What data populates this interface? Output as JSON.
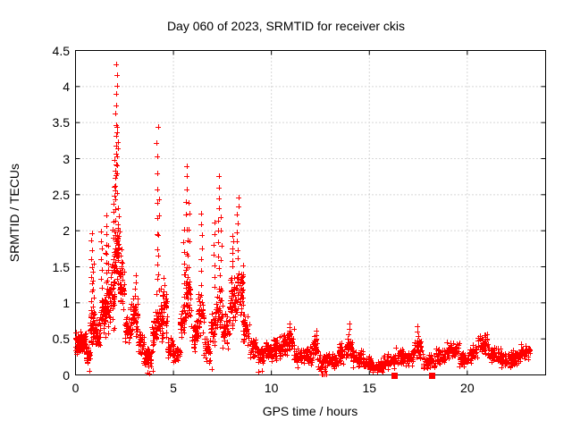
{
  "chart_data": {
    "type": "scatter",
    "title": "Day 060 of 2023, SRMTID for receiver ckis",
    "xlabel": "GPS time / hours",
    "ylabel": "SRMTID / TECUs",
    "xlim": [
      0,
      24
    ],
    "ylim": [
      0,
      4.5
    ],
    "xticks": [
      0,
      5,
      10,
      15,
      20
    ],
    "xtick_labels": [
      "0",
      "5",
      "10",
      "15",
      "20"
    ],
    "yticks": [
      0,
      0.5,
      1,
      1.5,
      2,
      2.5,
      3,
      3.5,
      4,
      4.5
    ],
    "ytick_labels": [
      "0",
      "0.5",
      "1",
      "1.5",
      "2",
      "2.5",
      "3",
      "3.5",
      "4",
      "4.5"
    ],
    "grid": true,
    "legend": "none",
    "axis_color": "#000000",
    "grid_color": "#b0b0b0",
    "marker_color": "#ff0000",
    "marker_size": 7,
    "seed": 60,
    "series": [
      {
        "name": "srmtid-plus-markers",
        "marker": "plus",
        "color": "#ff0000",
        "bands": [
          [
            0.0,
            0.3,
            0.25,
            0.65,
            45
          ],
          [
            0.3,
            0.55,
            0.28,
            0.6,
            35
          ],
          [
            0.55,
            0.75,
            0.12,
            0.45,
            28
          ],
          [
            0.75,
            1.0,
            0.3,
            0.95,
            42
          ],
          [
            1.0,
            1.25,
            0.35,
            0.8,
            32
          ],
          [
            1.25,
            1.55,
            0.45,
            1.25,
            40
          ],
          [
            1.55,
            1.8,
            0.5,
            1.4,
            35
          ],
          [
            1.8,
            2.0,
            0.6,
            1.6,
            30
          ],
          [
            1.95,
            2.25,
            1.2,
            2.1,
            45
          ],
          [
            2.25,
            2.5,
            0.8,
            1.6,
            35
          ],
          [
            2.5,
            2.8,
            0.4,
            0.9,
            32
          ],
          [
            2.8,
            3.2,
            0.45,
            1.15,
            42
          ],
          [
            3.2,
            3.5,
            0.25,
            0.6,
            30
          ],
          [
            3.5,
            3.9,
            0.05,
            0.4,
            40
          ],
          [
            3.9,
            4.15,
            0.3,
            0.9,
            26
          ],
          [
            4.1,
            4.35,
            0.4,
            1.05,
            24
          ],
          [
            4.35,
            4.7,
            0.4,
            1.3,
            40
          ],
          [
            4.7,
            5.0,
            0.2,
            0.55,
            28
          ],
          [
            5.0,
            5.35,
            0.13,
            0.4,
            30
          ],
          [
            5.35,
            5.6,
            0.45,
            1.05,
            30
          ],
          [
            5.6,
            5.9,
            0.6,
            1.55,
            40
          ],
          [
            5.9,
            6.25,
            0.28,
            0.8,
            34
          ],
          [
            6.25,
            6.55,
            0.5,
            1.15,
            35
          ],
          [
            6.55,
            6.9,
            0.15,
            0.55,
            30
          ],
          [
            6.9,
            7.2,
            0.35,
            1.0,
            32
          ],
          [
            7.2,
            7.5,
            0.45,
            1.2,
            35
          ],
          [
            7.5,
            7.85,
            0.3,
            0.9,
            34
          ],
          [
            7.85,
            8.2,
            0.55,
            1.45,
            46
          ],
          [
            8.2,
            8.55,
            0.75,
            1.55,
            40
          ],
          [
            8.55,
            8.9,
            0.35,
            0.95,
            32
          ],
          [
            8.9,
            9.3,
            0.2,
            0.55,
            34
          ],
          [
            9.3,
            9.7,
            0.1,
            0.45,
            32
          ],
          [
            9.7,
            10.1,
            0.15,
            0.5,
            36
          ],
          [
            10.1,
            10.45,
            0.2,
            0.55,
            34
          ],
          [
            10.45,
            10.8,
            0.2,
            0.6,
            34
          ],
          [
            10.8,
            11.15,
            0.25,
            0.68,
            32
          ],
          [
            11.15,
            11.6,
            0.1,
            0.4,
            38
          ],
          [
            11.6,
            12.1,
            0.12,
            0.42,
            42
          ],
          [
            12.1,
            12.4,
            0.18,
            0.6,
            28
          ],
          [
            12.4,
            12.85,
            0.04,
            0.3,
            38
          ],
          [
            12.85,
            13.4,
            0.08,
            0.32,
            44
          ],
          [
            13.4,
            13.8,
            0.12,
            0.45,
            34
          ],
          [
            13.8,
            14.15,
            0.18,
            0.55,
            30
          ],
          [
            14.15,
            14.7,
            0.1,
            0.35,
            44
          ],
          [
            14.7,
            15.1,
            0.06,
            0.28,
            34
          ],
          [
            15.1,
            15.7,
            0.03,
            0.22,
            46
          ],
          [
            15.7,
            16.3,
            0.08,
            0.3,
            46
          ],
          [
            16.3,
            16.8,
            0.12,
            0.38,
            38
          ],
          [
            16.8,
            17.25,
            0.1,
            0.33,
            34
          ],
          [
            17.25,
            17.7,
            0.18,
            0.5,
            34
          ],
          [
            17.7,
            18.4,
            0.07,
            0.3,
            52
          ],
          [
            18.4,
            18.9,
            0.12,
            0.38,
            38
          ],
          [
            18.9,
            19.6,
            0.22,
            0.5,
            52
          ],
          [
            19.6,
            20.1,
            0.08,
            0.32,
            38
          ],
          [
            20.1,
            20.55,
            0.15,
            0.45,
            34
          ],
          [
            20.55,
            21.1,
            0.25,
            0.58,
            42
          ],
          [
            21.1,
            21.7,
            0.15,
            0.4,
            44
          ],
          [
            21.7,
            22.3,
            0.1,
            0.32,
            44
          ],
          [
            22.3,
            22.7,
            0.12,
            0.35,
            30
          ],
          [
            22.7,
            23.2,
            0.18,
            0.45,
            38
          ]
        ],
        "columns": [
          [
            0.82,
            0.9,
            1.97,
            10
          ],
          [
            0.9,
            0.7,
            1.55,
            8
          ],
          [
            1.32,
            1.2,
            2.0,
            7
          ],
          [
            1.55,
            1.3,
            2.2,
            8
          ],
          [
            1.63,
            1.2,
            1.8,
            6
          ],
          [
            1.95,
            1.9,
            2.6,
            7
          ],
          [
            2.02,
            2.0,
            3.0,
            8
          ],
          [
            2.07,
            2.5,
            4.3,
            14
          ],
          [
            2.12,
            2.8,
            3.45,
            7
          ],
          [
            2.18,
            1.9,
            2.3,
            5
          ],
          [
            2.35,
            1.4,
            1.75,
            5
          ],
          [
            3.05,
            1.1,
            1.38,
            4
          ],
          [
            4.18,
            1.1,
            3.45,
            12
          ],
          [
            4.25,
            0.9,
            2.45,
            7
          ],
          [
            4.5,
            1.0,
            1.35,
            5
          ],
          [
            5.55,
            1.1,
            2.0,
            7
          ],
          [
            5.68,
            1.5,
            2.92,
            9
          ],
          [
            5.78,
            1.3,
            2.4,
            7
          ],
          [
            6.42,
            1.1,
            2.25,
            8
          ],
          [
            7.08,
            1.2,
            2.1,
            7
          ],
          [
            7.3,
            1.5,
            2.78,
            9
          ],
          [
            7.42,
            1.2,
            2.2,
            6
          ],
          [
            8.02,
            1.5,
            1.95,
            6
          ],
          [
            8.28,
            1.6,
            2.47,
            8
          ],
          [
            8.55,
            0.95,
            1.5,
            6
          ],
          [
            10.95,
            0.5,
            0.7,
            4
          ],
          [
            12.28,
            0.35,
            0.62,
            5
          ],
          [
            13.95,
            0.35,
            0.72,
            6
          ],
          [
            17.5,
            0.35,
            0.65,
            6
          ],
          [
            20.9,
            0.4,
            0.57,
            4
          ]
        ],
        "points": [
          [
            0.72,
            0.05
          ],
          [
            3.68,
            0.03
          ],
          [
            3.78,
            0.02
          ],
          [
            3.95,
            0.05
          ],
          [
            6.95,
            0.08
          ],
          [
            9.35,
            0.04
          ],
          [
            9.5,
            0.05
          ],
          [
            12.55,
            0.01
          ],
          [
            12.62,
            0.01
          ],
          [
            12.72,
            0.01
          ],
          [
            12.78,
            0.01
          ]
        ]
      },
      {
        "name": "event-square-markers",
        "marker": "square",
        "color": "#ff0000",
        "points": [
          [
            16.25,
            0.0
          ],
          [
            18.2,
            0.0
          ]
        ]
      }
    ]
  }
}
